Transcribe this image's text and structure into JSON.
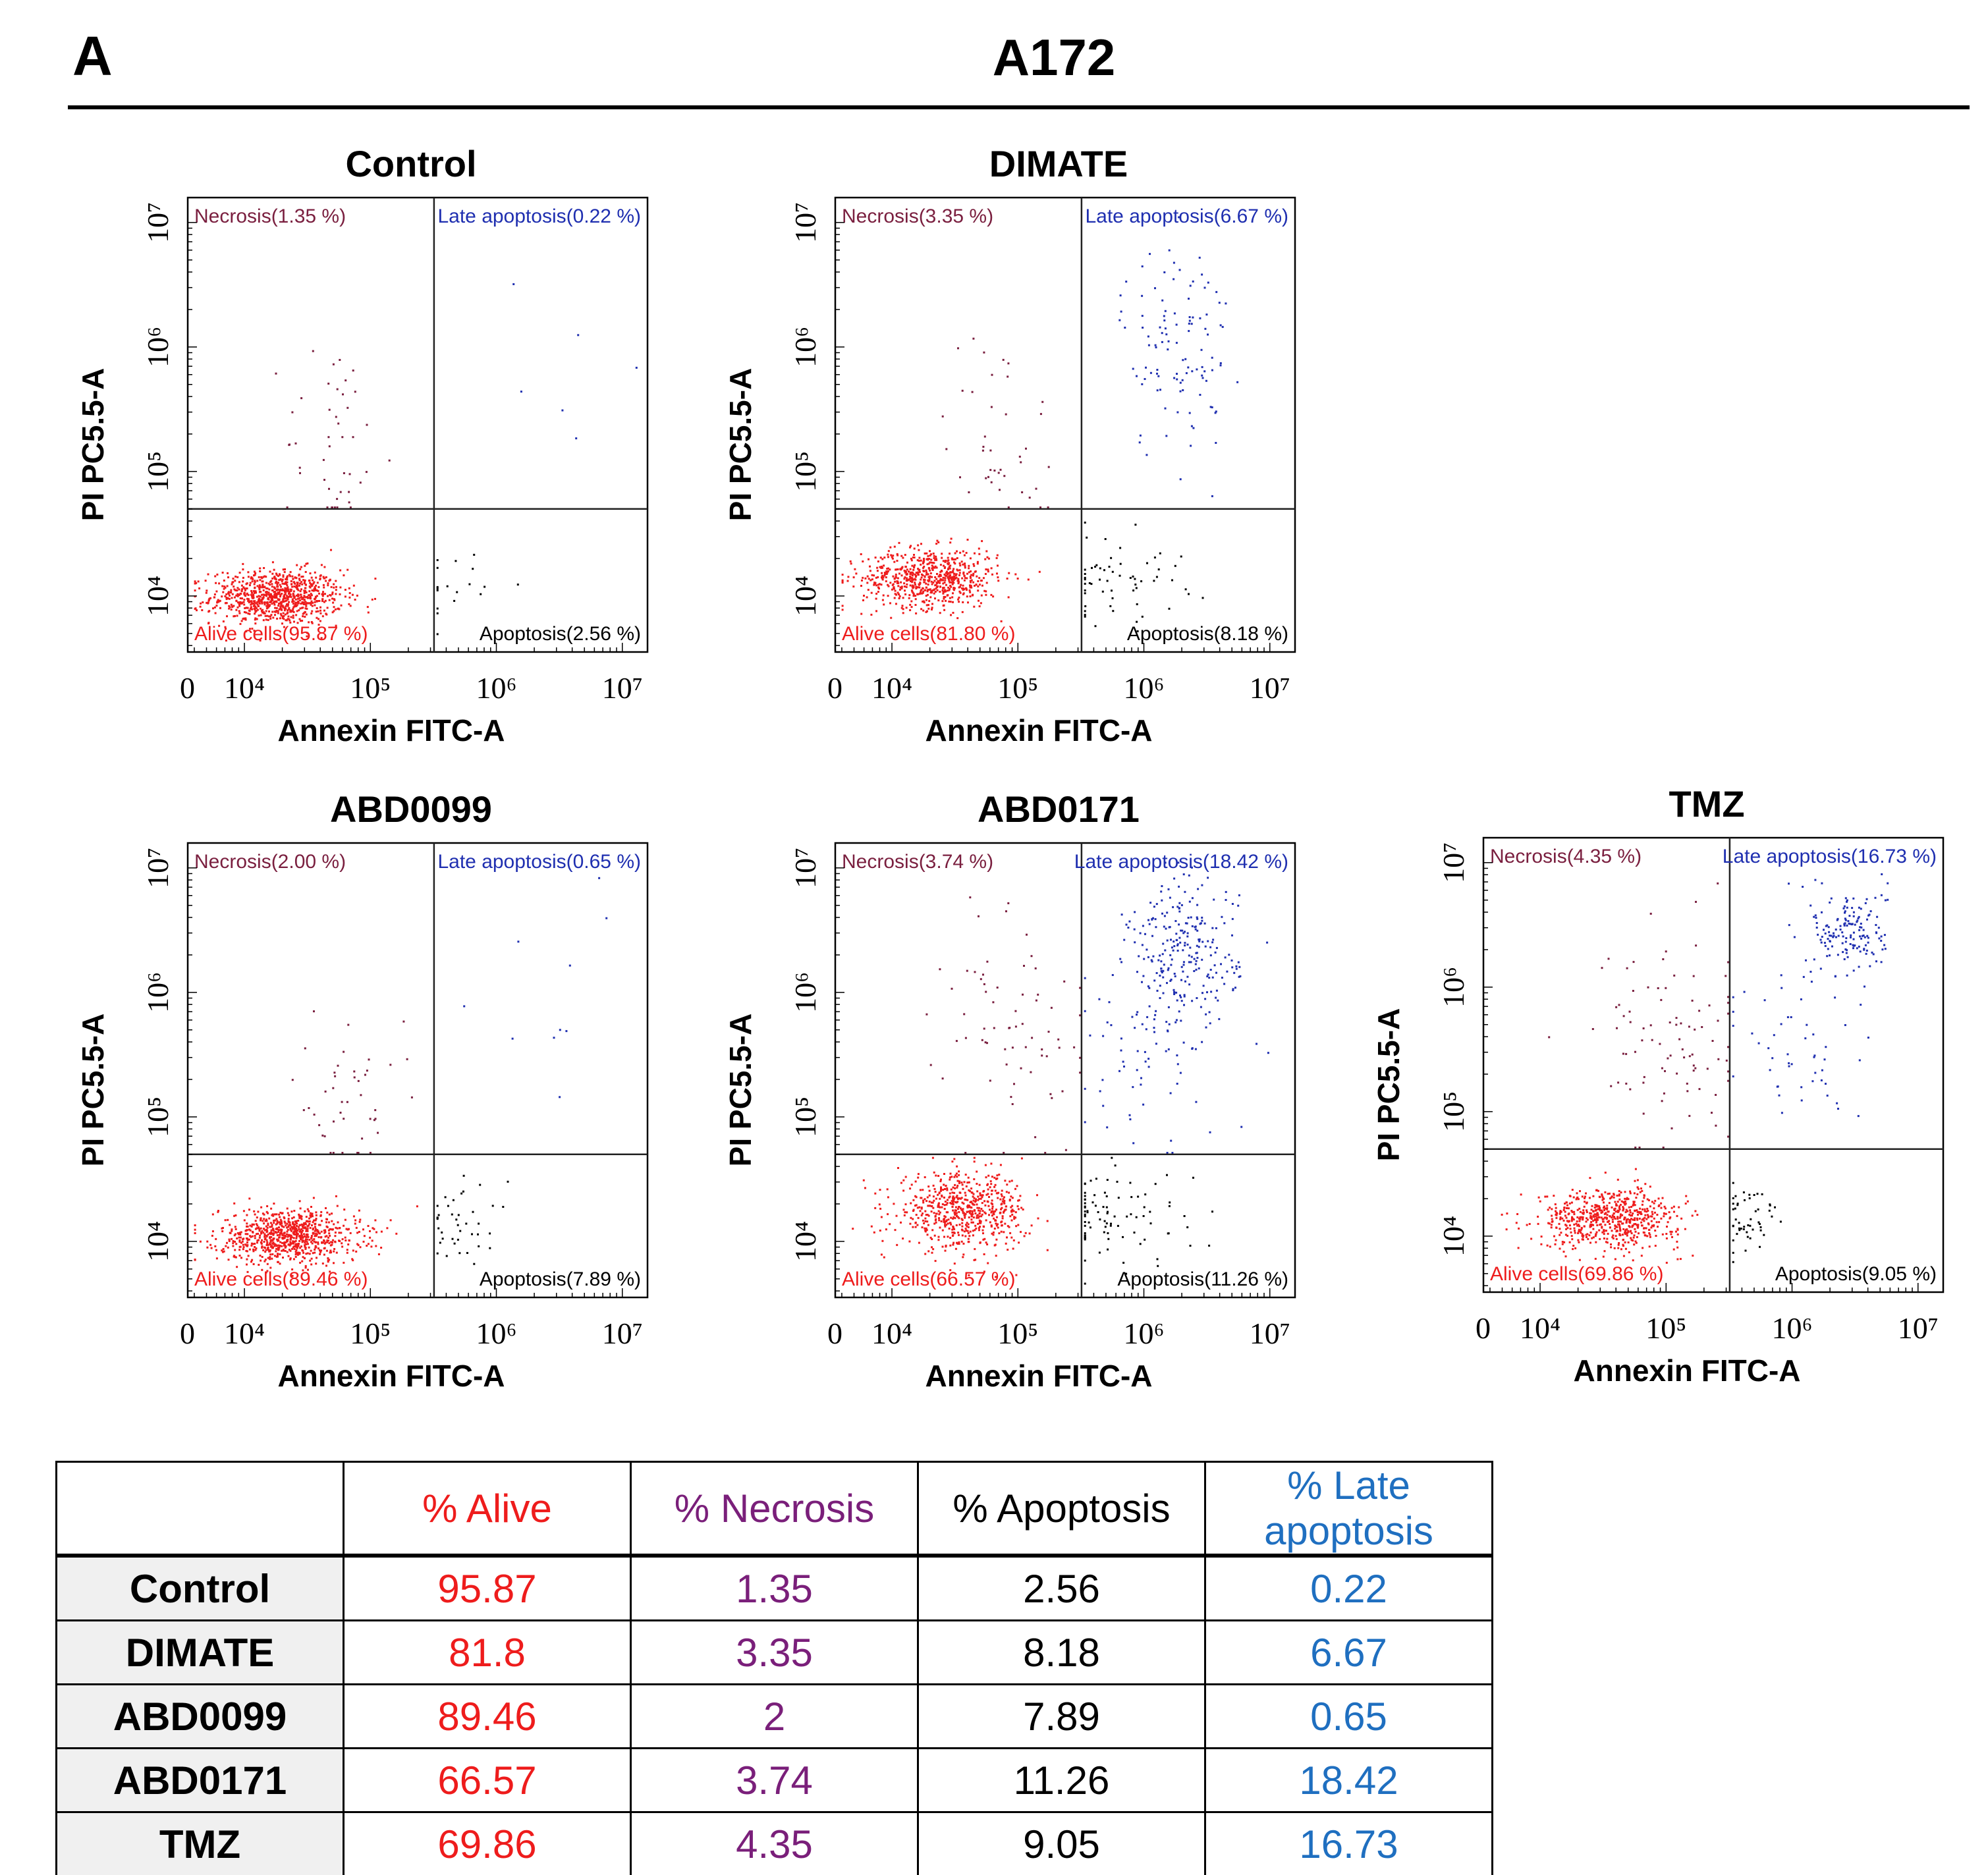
{
  "figure": {
    "panel_letter": "A",
    "cell_line": "A172"
  },
  "colors": {
    "alive": "#ee1c1c",
    "necrosis": "#7a1f3f",
    "apoptosis": "#000000",
    "late": "#1f2fb0",
    "necrosis_table": "#7a1f7a",
    "late_table": "#1f6fc0"
  },
  "chart_data": [
    {
      "type": "scatter",
      "title": "Control",
      "xlabel": "Annexin FITC-A",
      "ylabel": "PI PC5.5-A",
      "x_ticks": [
        "0",
        "10⁴",
        "10⁵",
        "10⁶",
        "10⁷"
      ],
      "y_ticks": [
        "10⁴",
        "10⁵",
        "10⁶",
        "10⁷"
      ],
      "gate_x": 320000,
      "gate_y": 50000,
      "quadrants": {
        "necrosis": 1.35,
        "late_apoptosis": 0.22,
        "alive": 95.87,
        "apoptosis": 2.56
      },
      "quadrant_labels": {
        "necrosis": "Necrosis(1.35 %)",
        "late": "Late apoptosis(0.22 %)",
        "alive": "Alive cells(95.87 %)",
        "apoptosis": "Apoptosis(2.56 %)"
      },
      "clusters": [
        {
          "q": "alive",
          "n": 900,
          "cx": 4.25,
          "cy": 4.0,
          "sx": 0.26,
          "sy": 0.11
        },
        {
          "q": "apoptosis",
          "n": 18,
          "cx": 5.7,
          "cy": 4.1,
          "sx": 0.25,
          "sy": 0.18
        },
        {
          "q": "necrosis",
          "n": 45,
          "cx": 4.7,
          "cy": 5.2,
          "sx": 0.2,
          "sy": 0.45
        },
        {
          "q": "late",
          "n": 6,
          "cx": 6.3,
          "cy": 5.9,
          "sx": 0.35,
          "sy": 0.35
        }
      ]
    },
    {
      "type": "scatter",
      "title": "DIMATE",
      "xlabel": "Annexin FITC-A",
      "ylabel": "PI PC5.5-A",
      "x_ticks": [
        "0",
        "10⁴",
        "10⁵",
        "10⁶",
        "10⁷"
      ],
      "y_ticks": [
        "10⁴",
        "10⁵",
        "10⁶",
        "10⁷"
      ],
      "gate_x": 320000,
      "gate_y": 50000,
      "quadrants": {
        "necrosis": 3.35,
        "late_apoptosis": 6.67,
        "alive": 81.8,
        "apoptosis": 8.18
      },
      "quadrant_labels": {
        "necrosis": "Necrosis(3.35 %)",
        "late": "Late apoptosis(6.67 %)",
        "alive": "Alive cells(81.80 %)",
        "apoptosis": "Apoptosis(8.18 %)"
      },
      "clusters": [
        {
          "q": "alive",
          "n": 700,
          "cx": 4.3,
          "cy": 4.15,
          "sx": 0.27,
          "sy": 0.12
        },
        {
          "q": "apoptosis",
          "n": 60,
          "cx": 5.75,
          "cy": 4.15,
          "sx": 0.28,
          "sy": 0.18
        },
        {
          "q": "necrosis",
          "n": 40,
          "cx": 4.85,
          "cy": 5.3,
          "sx": 0.22,
          "sy": 0.45
        },
        {
          "q": "late",
          "n": 110,
          "cx": 6.25,
          "cy": 6.0,
          "sx": 0.22,
          "sy": 0.45
        }
      ]
    },
    {
      "type": "scatter",
      "title": "ABD0099",
      "xlabel": "Annexin FITC-A",
      "ylabel": "PI PC5.5-A",
      "x_ticks": [
        "0",
        "10⁴",
        "10⁵",
        "10⁶",
        "10⁷"
      ],
      "y_ticks": [
        "10⁴",
        "10⁵",
        "10⁶",
        "10⁷"
      ],
      "gate_x": 320000,
      "gate_y": 50000,
      "quadrants": {
        "necrosis": 2.0,
        "late_apoptosis": 0.65,
        "alive": 89.46,
        "apoptosis": 7.89
      },
      "quadrant_labels": {
        "necrosis": "Necrosis(2.00 %)",
        "late": "Late apoptosis(0.65 %)",
        "alive": "Alive cells(89.46 %)",
        "apoptosis": "Apoptosis(7.89 %)"
      },
      "clusters": [
        {
          "q": "alive",
          "n": 850,
          "cx": 4.35,
          "cy": 4.05,
          "sx": 0.28,
          "sy": 0.11
        },
        {
          "q": "apoptosis",
          "n": 40,
          "cx": 5.7,
          "cy": 4.15,
          "sx": 0.2,
          "sy": 0.15
        },
        {
          "q": "necrosis",
          "n": 45,
          "cx": 4.8,
          "cy": 5.1,
          "sx": 0.22,
          "sy": 0.35
        },
        {
          "q": "late",
          "n": 10,
          "cx": 6.5,
          "cy": 5.9,
          "sx": 0.35,
          "sy": 0.45
        }
      ]
    },
    {
      "type": "scatter",
      "title": "ABD0171",
      "xlabel": "Annexin FITC-A",
      "ylabel": "PI PC5.5-A",
      "x_ticks": [
        "0",
        "10⁴",
        "10⁵",
        "10⁶",
        "10⁷"
      ],
      "y_ticks": [
        "10⁴",
        "10⁵",
        "10⁶",
        "10⁷"
      ],
      "gate_x": 320000,
      "gate_y": 50000,
      "quadrants": {
        "necrosis": 3.74,
        "late_apoptosis": 18.42,
        "alive": 66.57,
        "apoptosis": 11.26
      },
      "quadrant_labels": {
        "necrosis": "Necrosis(3.74 %)",
        "late": "Late apoptosis(18.42 %)",
        "alive": "Alive cells(66.57 %)",
        "apoptosis": "Apoptosis(11.26 %)"
      },
      "clusters": [
        {
          "q": "alive",
          "n": 650,
          "cx": 4.55,
          "cy": 4.25,
          "sx": 0.26,
          "sy": 0.15
        },
        {
          "q": "apoptosis",
          "n": 90,
          "cx": 5.75,
          "cy": 4.2,
          "sx": 0.3,
          "sy": 0.2
        },
        {
          "q": "necrosis",
          "n": 70,
          "cx": 5.0,
          "cy": 5.7,
          "sx": 0.3,
          "sy": 0.55
        },
        {
          "q": "late",
          "n": 260,
          "cx": 6.3,
          "cy": 6.3,
          "sx": 0.22,
          "sy": 0.3
        },
        {
          "q": "late",
          "n": 60,
          "cx": 6.0,
          "cy": 5.4,
          "sx": 0.3,
          "sy": 0.35
        }
      ]
    },
    {
      "type": "scatter",
      "title": "TMZ",
      "xlabel": "Annexin FITC-A",
      "ylabel": "PI PC5.5-A",
      "x_ticks": [
        "0",
        "10⁴",
        "10⁵",
        "10⁶",
        "10⁷"
      ],
      "y_ticks": [
        "10⁴",
        "10⁵",
        "10⁶",
        "10⁷"
      ],
      "gate_x": 320000,
      "gate_y": 50000,
      "quadrants": {
        "necrosis": 4.35,
        "late_apoptosis": 16.73,
        "alive": 69.86,
        "apoptosis": 9.05
      },
      "quadrant_labels": {
        "necrosis": "Necrosis(4.35 %)",
        "late": "Late apoptosis(16.73 %)",
        "alive": "Alive cells(69.86 %)",
        "apoptosis": "Apoptosis(9.05 %)"
      },
      "clusters": [
        {
          "q": "alive",
          "n": 650,
          "cx": 4.55,
          "cy": 4.15,
          "sx": 0.28,
          "sy": 0.12
        },
        {
          "q": "apoptosis",
          "n": 50,
          "cx": 5.65,
          "cy": 4.15,
          "sx": 0.15,
          "sy": 0.15
        },
        {
          "q": "necrosis",
          "n": 90,
          "cx": 5.0,
          "cy": 5.6,
          "sx": 0.3,
          "sy": 0.45
        },
        {
          "q": "late",
          "n": 160,
          "cx": 6.45,
          "cy": 6.45,
          "sx": 0.15,
          "sy": 0.18
        },
        {
          "q": "late",
          "n": 50,
          "cx": 6.1,
          "cy": 5.5,
          "sx": 0.3,
          "sy": 0.4
        }
      ]
    }
  ],
  "table": {
    "headers": [
      "",
      "% Alive",
      "% Necrosis",
      "% Apoptosis",
      "% Late apoptosis"
    ],
    "rows": [
      {
        "label": "Control",
        "values": [
          "95.87",
          "1.35",
          "2.56",
          "0.22"
        ]
      },
      {
        "label": "DIMATE",
        "values": [
          "81.8",
          "3.35",
          "8.18",
          "6.67"
        ]
      },
      {
        "label": "ABD0099",
        "values": [
          "89.46",
          "2",
          "7.89",
          "0.65"
        ]
      },
      {
        "label": "ABD0171",
        "values": [
          "66.57",
          "3.74",
          "11.26",
          "18.42"
        ]
      },
      {
        "label": "TMZ",
        "values": [
          "69.86",
          "4.35",
          "9.05",
          "16.73"
        ]
      }
    ]
  }
}
